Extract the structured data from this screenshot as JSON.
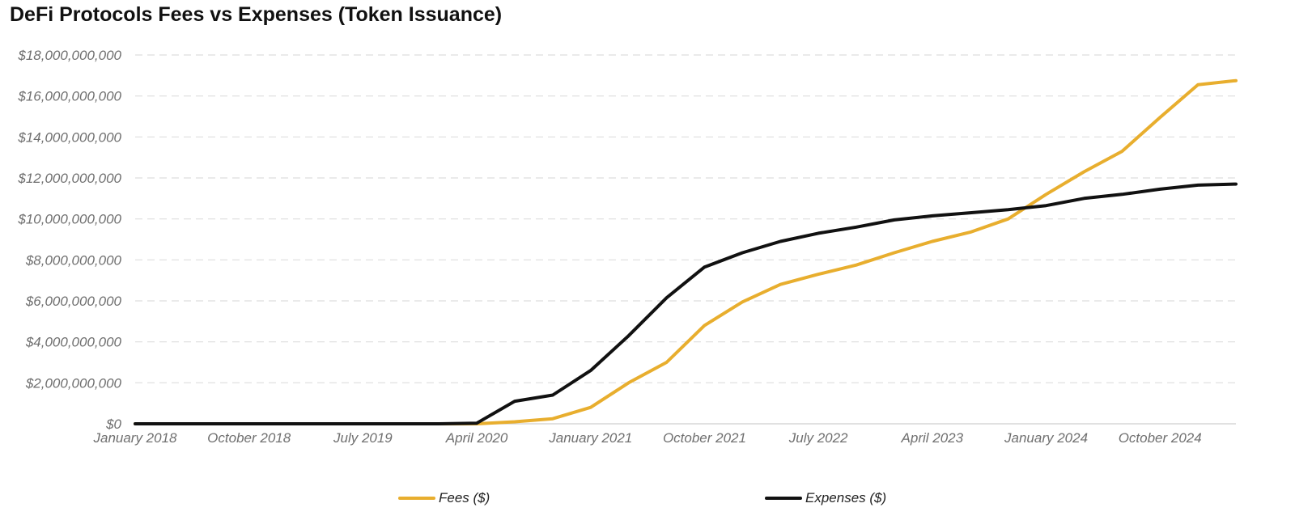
{
  "colors": {
    "fees": "#E8AE2E",
    "expenses": "#111111",
    "grid": "#dedede"
  },
  "chart_data": {
    "type": "line",
    "title": "DeFi Protocols Fees vs Expenses (Token Issuance)",
    "xlabel": "",
    "ylabel": "",
    "ylim": [
      0,
      18000000000
    ],
    "grid": true,
    "legend_position": "bottom",
    "y_ticks": [
      0,
      2000000000,
      4000000000,
      6000000000,
      8000000000,
      10000000000,
      12000000000,
      14000000000,
      16000000000,
      18000000000
    ],
    "y_tick_labels": [
      "$0",
      "$2,000,000,000",
      "$4,000,000,000",
      "$6,000,000,000",
      "$8,000,000,000",
      "$10,000,000,000",
      "$12,000,000,000",
      "$14,000,000,000",
      "$16,000,000,000",
      "$18,000,000,000"
    ],
    "x_tick_indices": [
      0,
      3,
      6,
      9,
      12,
      15,
      18,
      21,
      24,
      27
    ],
    "x_tick_labels": [
      "January 2018",
      "October 2018",
      "July 2019",
      "April 2020",
      "January 2021",
      "October 2021",
      "July 2022",
      "April 2023",
      "January 2024",
      "October 2024"
    ],
    "x": [
      "Jan 2018",
      "Apr 2018",
      "Jul 2018",
      "Oct 2018",
      "Jan 2019",
      "Apr 2019",
      "Jul 2019",
      "Oct 2019",
      "Jan 2020",
      "Apr 2020",
      "Jul 2020",
      "Oct 2020",
      "Jan 2021",
      "Apr 2021",
      "Jul 2021",
      "Oct 2021",
      "Jan 2022",
      "Apr 2022",
      "Jul 2022",
      "Oct 2022",
      "Jan 2023",
      "Apr 2023",
      "Jul 2023",
      "Oct 2023",
      "Jan 2024",
      "Apr 2024",
      "Jul 2024",
      "Oct 2024",
      "Jan 2025",
      "Apr 2025"
    ],
    "series": [
      {
        "name": "Fees ($)",
        "values": [
          0,
          0,
          0,
          0,
          0,
          0,
          0,
          0,
          0,
          0,
          100000000,
          250000000,
          800000000,
          2000000000,
          3000000000,
          4800000000,
          5950000000,
          6800000000,
          7300000000,
          7750000000,
          8350000000,
          8900000000,
          9350000000,
          10000000000,
          11200000000,
          12300000000,
          13300000000,
          14950000000,
          16550000000,
          16750000000
        ]
      },
      {
        "name": "Expenses ($)",
        "values": [
          0,
          0,
          0,
          0,
          0,
          0,
          0,
          0,
          0,
          30000000,
          1100000000,
          1400000000,
          2600000000,
          4300000000,
          6150000000,
          7650000000,
          8350000000,
          8900000000,
          9300000000,
          9600000000,
          9950000000,
          10150000000,
          10300000000,
          10450000000,
          10650000000,
          11000000000,
          11200000000,
          11450000000,
          11650000000,
          11700000000
        ]
      }
    ]
  }
}
